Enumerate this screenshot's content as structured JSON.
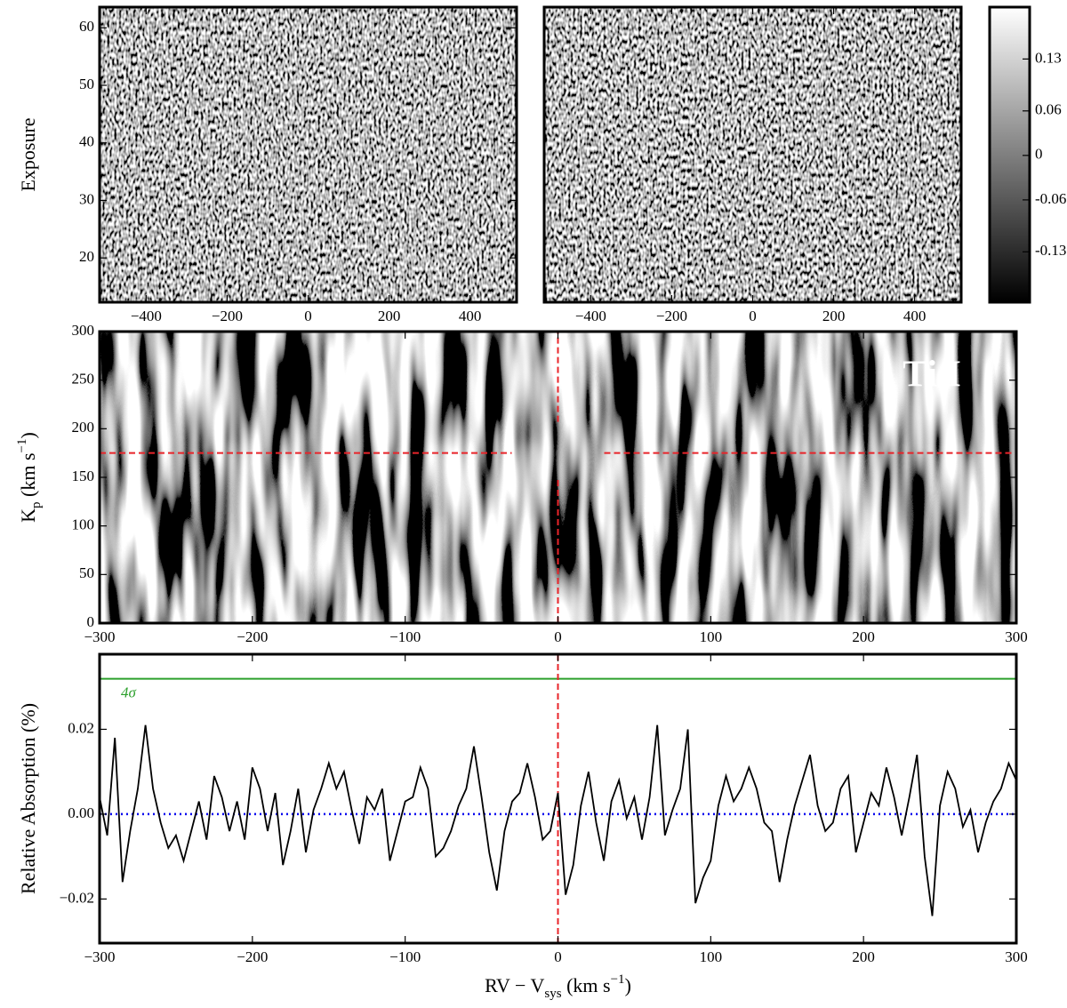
{
  "chart_data": [
    {
      "type": "heatmap",
      "ylabel": "Exposure",
      "xlim": [
        -515,
        515
      ],
      "ylim": [
        12.3,
        63.6
      ],
      "xticks": [
        {
          "value": -400,
          "label": "−400"
        },
        {
          "value": -200,
          "label": "−200"
        },
        0,
        200,
        400
      ],
      "yticks": [
        20,
        30,
        40,
        50,
        60
      ]
    },
    {
      "type": "heatmap",
      "xlim": [
        -515,
        515
      ],
      "ylim": [
        12.3,
        63.6
      ],
      "xticks": [
        {
          "value": -400,
          "label": "−400"
        },
        {
          "value": -200,
          "label": "−200"
        },
        0,
        200,
        400
      ]
    },
    {
      "type": "colorbar",
      "ylim": [
        -0.198,
        0.2
      ],
      "yticks": [
        -0.13,
        -0.06,
        0,
        0.06,
        0.13
      ]
    },
    {
      "type": "heatmap",
      "ylabel": [
        "K",
        "p",
        " (km s",
        "−1",
        ")"
      ],
      "annotation": "Ti I",
      "xlim": [
        -300,
        300
      ],
      "ylim": [
        0,
        300
      ],
      "xticks": [
        {
          "value": -300,
          "label": "−300"
        },
        {
          "value": -200,
          "label": "−200"
        },
        {
          "value": -100,
          "label": "−100"
        },
        0,
        100,
        200,
        300
      ],
      "yticks": [
        0,
        50,
        100,
        150,
        200,
        250,
        300
      ],
      "markers": {
        "x": 0,
        "y": 175,
        "color": "#e8242a"
      }
    },
    {
      "type": "line",
      "ylabel": "Relative Absorption (%)",
      "xlabel": [
        "RV − V",
        "sys",
        " (km s",
        "−1",
        ")"
      ],
      "xlim": [
        -300,
        300
      ],
      "ylim": [
        -0.0304,
        0.0377
      ],
      "xticks": [
        {
          "value": -300,
          "label": "−300"
        },
        {
          "value": -200,
          "label": "−200"
        },
        {
          "value": -100,
          "label": "−100"
        },
        0,
        100,
        200,
        300
      ],
      "yticks": [
        {
          "value": -0.02,
          "label": "−0.02"
        },
        {
          "value": 0,
          "label": "0.00"
        },
        {
          "value": 0.02,
          "label": "0.02"
        }
      ],
      "series": [
        {
          "color": "#000000",
          "x": [
            -300,
            -295,
            -290,
            -285,
            -280,
            -275,
            -270,
            -265,
            -260,
            -255,
            -250,
            -245,
            -240,
            -235,
            -230,
            -225,
            -220,
            -215,
            -210,
            -205,
            -200,
            -195,
            -190,
            -185,
            -180,
            -175,
            -170,
            -165,
            -160,
            -155,
            -150,
            -145,
            -140,
            -135,
            -130,
            -125,
            -120,
            -115,
            -110,
            -105,
            -100,
            -95,
            -90,
            -85,
            -80,
            -75,
            -70,
            -65,
            -60,
            -55,
            -50,
            -45,
            -40,
            -35,
            -30,
            -25,
            -20,
            -15,
            -10,
            -5,
            0,
            5,
            10,
            15,
            20,
            25,
            30,
            35,
            40,
            45,
            50,
            55,
            60,
            65,
            70,
            75,
            80,
            85,
            90,
            95,
            100,
            105,
            110,
            115,
            120,
            125,
            130,
            135,
            140,
            145,
            150,
            155,
            160,
            165,
            170,
            175,
            180,
            185,
            190,
            195,
            200,
            205,
            210,
            215,
            220,
            225,
            230,
            235,
            240,
            245,
            250,
            255,
            260,
            265,
            270,
            275,
            280,
            285,
            290,
            295,
            300
          ],
          "values": [
            0.004,
            -0.005,
            0.018,
            -0.016,
            -0.004,
            0.006,
            0.021,
            0.006,
            -0.002,
            -0.008,
            -0.005,
            -0.011,
            -0.004,
            0.003,
            -0.006,
            0.009,
            0.004,
            -0.004,
            0.003,
            -0.006,
            0.011,
            0.006,
            -0.004,
            0.005,
            -0.012,
            -0.004,
            0.006,
            -0.009,
            0.001,
            0.006,
            0.012,
            0.006,
            0.01,
            0.001,
            -0.007,
            0.004,
            0.001,
            0.006,
            -0.011,
            -0.004,
            0.003,
            0.004,
            0.011,
            0.006,
            -0.01,
            -0.008,
            -0.004,
            0.002,
            0.006,
            0.016,
            0.004,
            -0.009,
            -0.018,
            -0.004,
            0.003,
            0.005,
            0.012,
            0.004,
            -0.006,
            -0.004,
            0.005,
            -0.019,
            -0.012,
            0.002,
            0.01,
            -0.002,
            -0.011,
            0.003,
            0.008,
            -0.001,
            0.004,
            -0.006,
            0.004,
            0.021,
            -0.005,
            0.001,
            0.006,
            0.02,
            -0.021,
            -0.015,
            -0.011,
            0.002,
            0.009,
            0.003,
            0.006,
            0.011,
            0.006,
            -0.002,
            -0.004,
            -0.016,
            -0.006,
            0.002,
            0.008,
            0.014,
            0.002,
            -0.004,
            -0.002,
            0.006,
            0.009,
            -0.009,
            -0.002,
            0.005,
            0.002,
            0.011,
            0.004,
            -0.005,
            0.004,
            0.014,
            -0.01,
            -0.024,
            0.002,
            0.01,
            0.006,
            -0.003,
            0.001,
            -0.009,
            -0.002,
            0.003,
            0.006,
            0.012,
            0.008
          ]
        }
      ],
      "threshold": {
        "value": 0.0319,
        "label": "4σ",
        "color": "#2ca02c"
      },
      "zero_line": {
        "value": 0,
        "color": "#0000ee"
      },
      "marker_x": {
        "value": 0,
        "color": "#e8242a"
      }
    }
  ]
}
